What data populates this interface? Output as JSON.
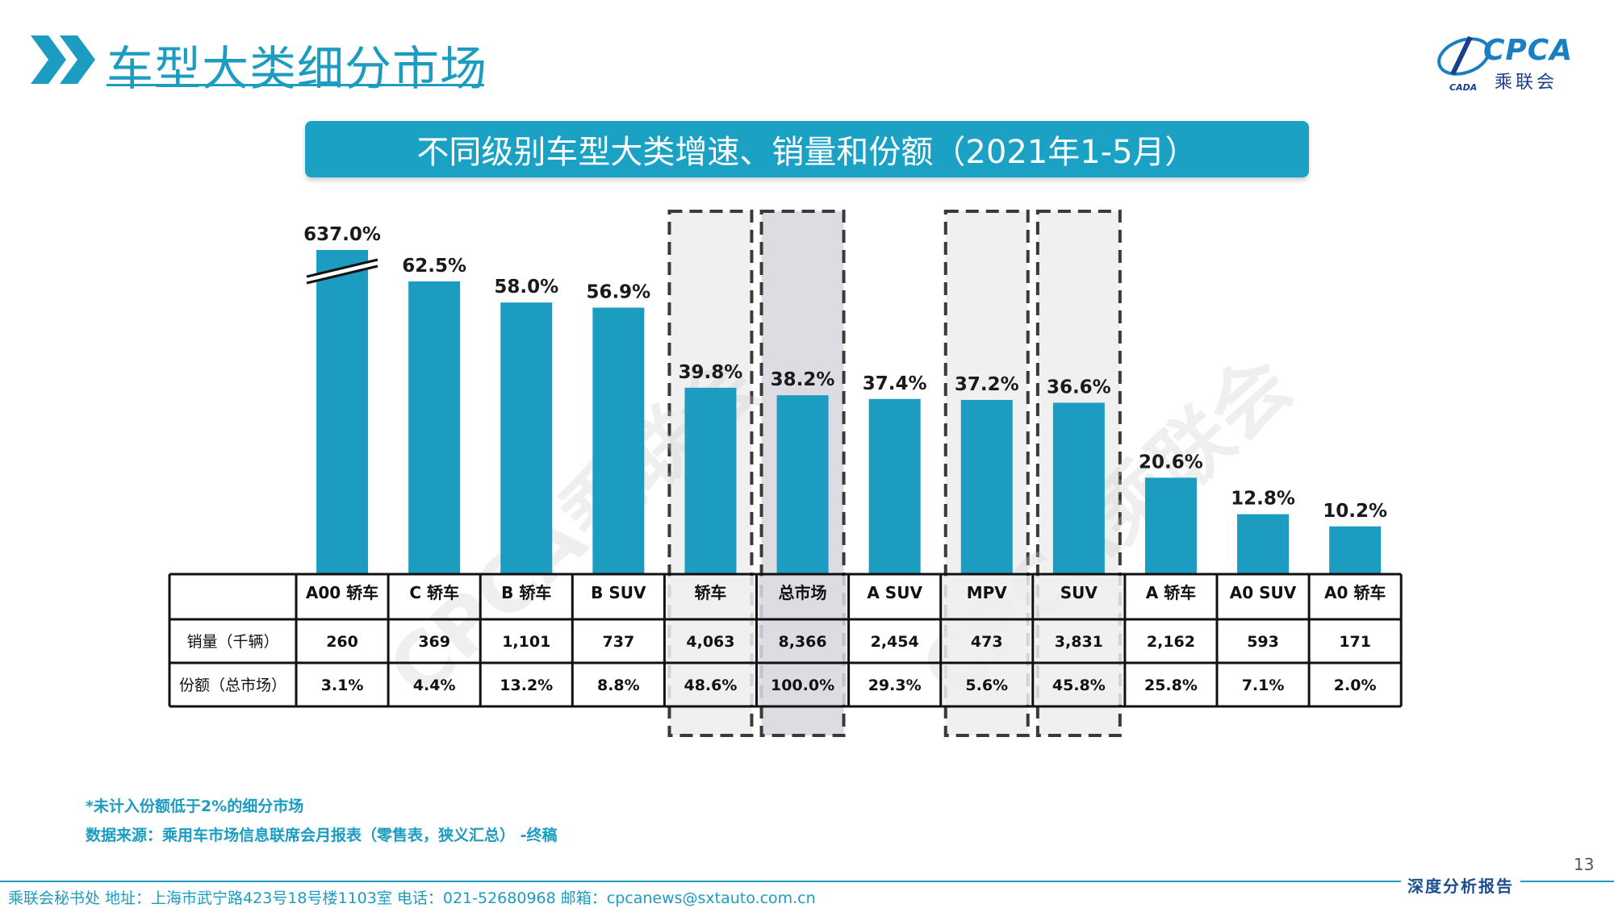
{
  "header": {
    "title": "车型大类细分市场",
    "logo_text": "CPCA",
    "logo_sub": "乘联会",
    "logo_small": "CADA"
  },
  "banner": {
    "text": "不同级别车型大类增速、销量和份额（2021年1-5月）"
  },
  "colors": {
    "bar": "#1b9cc0",
    "accent": "#1b9cc0",
    "highlight_box": "#f0f0f0",
    "highlight_box_dark": "#dcdce2"
  },
  "chart_data": {
    "type": "bar",
    "categories": [
      "A00 轿车",
      "C 轿车",
      "B 轿车",
      "B SUV",
      "轿车",
      "总市场",
      "A SUV",
      "MPV",
      "SUV",
      "A 轿车",
      "A0 SUV",
      "A0 轿车"
    ],
    "series": [
      {
        "values": [
          637.0,
          62.5,
          58.0,
          56.9,
          39.8,
          38.2,
          37.4,
          37.2,
          36.6,
          20.6,
          12.8,
          10.2
        ],
        "labels": [
          "637.0%",
          "62.5%",
          "58.0%",
          "56.9%",
          "39.8%",
          "38.2%",
          "37.4%",
          "37.2%",
          "36.6%",
          "20.6%",
          "12.8%",
          "10.2%"
        ],
        "unit": "%"
      }
    ],
    "axis_break": {
      "category": "A00 轿车"
    },
    "highlighted": [
      "轿车",
      "总市场",
      "MPV",
      "SUV"
    ],
    "emphasized": "总市场",
    "table": {
      "rows": [
        {
          "label": "销量（千辆）",
          "values": [
            "260",
            "369",
            "1,101",
            "737",
            "4,063",
            "8,366",
            "2,454",
            "473",
            "3,831",
            "2,162",
            "593",
            "171"
          ]
        },
        {
          "label": "份额（总市场）",
          "values": [
            "3.1%",
            "4.4%",
            "13.2%",
            "8.8%",
            "48.6%",
            "100.0%",
            "29.3%",
            "5.6%",
            "45.8%",
            "25.8%",
            "7.1%",
            "2.0%"
          ]
        }
      ]
    },
    "grid": false,
    "legend": "none"
  },
  "notes": {
    "note1": "*未计入份额低于2%的细分市场",
    "note2": "数据来源：乘用车市场信息联席会月报表（零售表，狭义汇总） -终稿"
  },
  "watermark": {
    "text": "CPCA乘联会"
  },
  "page_number": "13",
  "footer": {
    "text": "乘联会秘书处   地址：上海市武宁路423号18号楼1103室   电话：021-52680968   邮箱：cpcanews@sxtauto.com.cn",
    "tag": "深度分析报告"
  }
}
